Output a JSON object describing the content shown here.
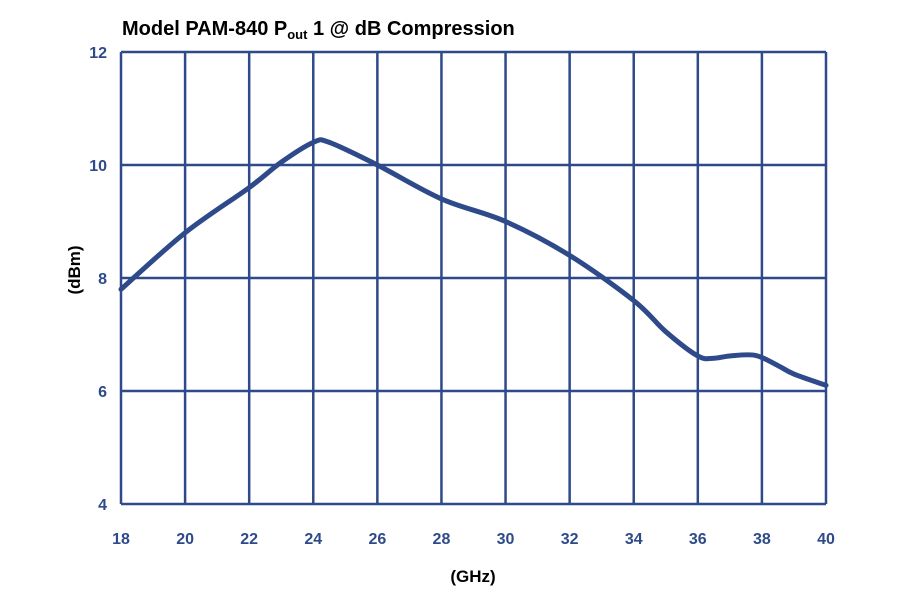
{
  "chart_data": {
    "type": "line",
    "title": {
      "prefix": "Model PAM-840 P",
      "subscript": "out",
      "suffix": " 1 @ dB Compression"
    },
    "xlabel": "(GHz)",
    "ylabel": "(dBm)",
    "xlim": [
      18,
      40
    ],
    "ylim": [
      4,
      12
    ],
    "x_ticks": [
      18,
      20,
      22,
      24,
      26,
      28,
      30,
      32,
      34,
      36,
      38,
      40
    ],
    "y_ticks": [
      4,
      6,
      8,
      10,
      12
    ],
    "grid": true,
    "colors": {
      "line": "#2e4a8a",
      "grid": "#2e4a8a",
      "text": "#2e4a8a"
    },
    "series": [
      {
        "x": [
          18,
          20,
          22,
          23,
          24,
          24.5,
          26,
          28,
          30,
          32,
          34,
          35,
          36,
          36.5,
          37,
          37.8,
          38.5,
          39,
          40
        ],
        "y": [
          7.8,
          8.8,
          9.6,
          10.05,
          10.4,
          10.4,
          10.0,
          9.4,
          9.0,
          8.4,
          7.6,
          7.05,
          6.62,
          6.58,
          6.62,
          6.63,
          6.45,
          6.3,
          6.1
        ]
      }
    ]
  }
}
